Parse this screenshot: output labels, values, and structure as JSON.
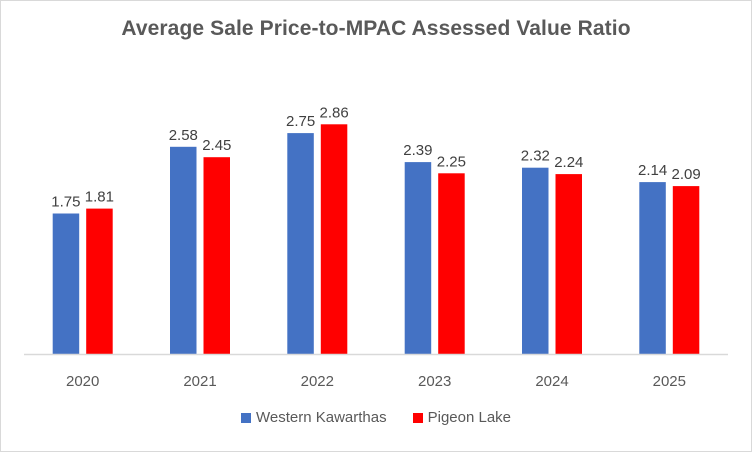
{
  "chart_data": {
    "type": "bar",
    "title": "Average Sale Price-to-MPAC Assessed Value Ratio",
    "xlabel": "",
    "ylabel": "",
    "categories": [
      "2020",
      "2021",
      "2022",
      "2023",
      "2024",
      "2025"
    ],
    "series": [
      {
        "name": "Western Kawarthas",
        "color": "#4472c4",
        "values": [
          1.75,
          2.58,
          2.75,
          2.39,
          2.32,
          2.14
        ],
        "labels": [
          "1.75",
          "2.58",
          "2.75",
          "2.39",
          "2.32",
          "2.14"
        ]
      },
      {
        "name": "Pigeon Lake",
        "color": "#ff0000",
        "values": [
          1.81,
          2.45,
          2.86,
          2.25,
          2.24,
          2.09
        ],
        "labels": [
          "1.81",
          "2.45",
          "2.86",
          "2.25",
          "2.24",
          "2.09"
        ]
      }
    ],
    "ylim": [
      0,
      3.2
    ],
    "grid": false,
    "y_axis_visible": false,
    "legend_position": "bottom",
    "data_labels": true
  }
}
